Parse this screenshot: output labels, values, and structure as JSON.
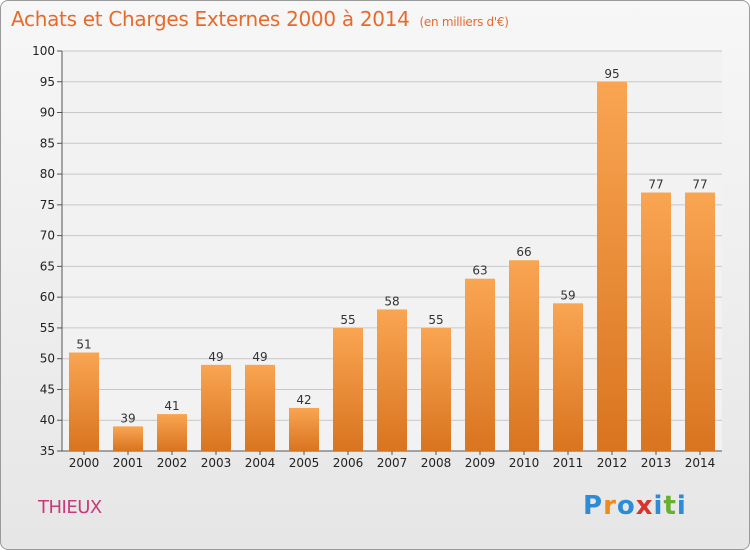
{
  "header": {
    "title": "Achats et Charges Externes 2000 à 2014",
    "subtitle": "(en milliers d'€)"
  },
  "commune": "THIEUX",
  "logo": {
    "text": "Proxiti",
    "letters": [
      {
        "char": "P",
        "color": "#2e8bd6"
      },
      {
        "char": "r",
        "color": "#f08a1a"
      },
      {
        "char": "o",
        "color": "#2e8bd6"
      },
      {
        "char": "x",
        "color": "#d8342a"
      },
      {
        "char": "i",
        "color": "#2e8bd6"
      },
      {
        "char": "t",
        "color": "#68b030"
      },
      {
        "char": "i",
        "color": "#2e8bd6"
      }
    ]
  },
  "colors": {
    "bar_light": "#f9a552",
    "bar_dark": "#d97420",
    "title": "#e86a2a",
    "commune": "#c83a7a",
    "grid": "#c8c8c8"
  },
  "chart_data": {
    "type": "bar",
    "title": "Achats et Charges Externes 2000 à 2014",
    "subtitle": "(en milliers d'€)",
    "categories": [
      "2000",
      "2001",
      "2002",
      "2003",
      "2004",
      "2005",
      "2006",
      "2007",
      "2008",
      "2009",
      "2010",
      "2011",
      "2012",
      "2013",
      "2014"
    ],
    "values": [
      51,
      39,
      41,
      49,
      49,
      42,
      55,
      58,
      55,
      63,
      66,
      59,
      95,
      77,
      77
    ],
    "ylim": [
      35,
      100
    ],
    "yticks": [
      35,
      40,
      45,
      50,
      55,
      60,
      65,
      70,
      75,
      80,
      85,
      90,
      95,
      100
    ],
    "grid": true,
    "data_labels": true
  }
}
